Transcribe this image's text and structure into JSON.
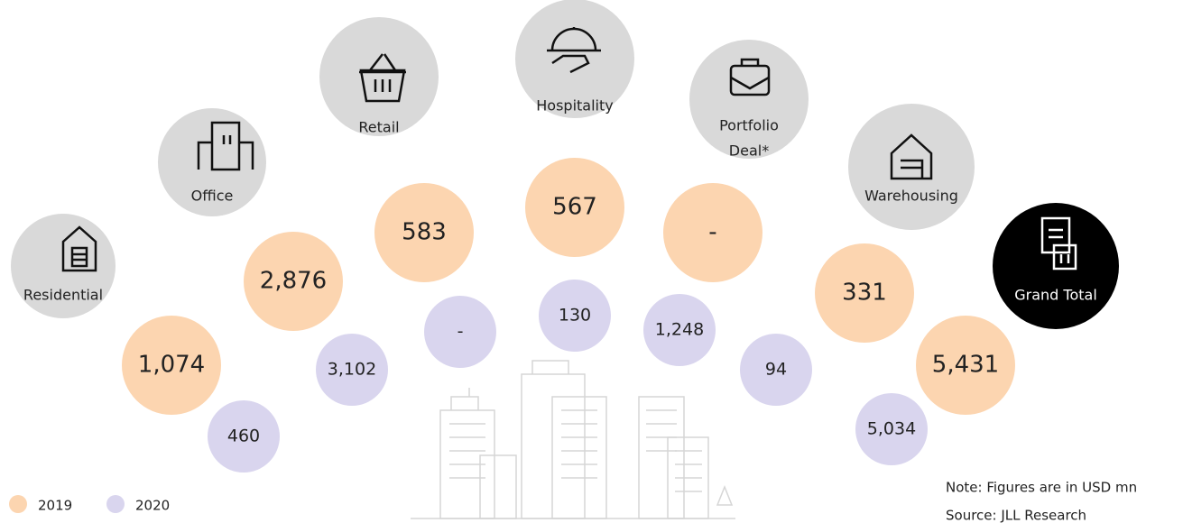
{
  "sectors": [
    {
      "label": [
        "Residential"
      ],
      "value_2019": "1,074",
      "value_2020": "460"
    },
    {
      "label": [
        "Office"
      ],
      "value_2019": "2,876",
      "value_2020": "3,102"
    },
    {
      "label": [
        "Retail"
      ],
      "value_2019": "583",
      "value_2020": "-"
    },
    {
      "label": [
        "Hospitality"
      ],
      "value_2019": "567",
      "value_2020": "130"
    },
    {
      "label": [
        "Portfolio",
        "Deal*"
      ],
      "value_2019": "-",
      "value_2020": "1,248"
    },
    {
      "label": [
        "Warehousing"
      ],
      "value_2019": "331",
      "value_2020": "94"
    },
    {
      "label": [
        "Grand Total"
      ],
      "value_2019": "5,431",
      "value_2020": "5,034"
    }
  ],
  "legend": [
    {
      "name": "2019",
      "color": "#fcd5b0"
    },
    {
      "name": "2020",
      "color": "#d9d5ee"
    }
  ],
  "notes": [
    "Note: Figures are in USD mn",
    "Source: JLL Research"
  ]
}
